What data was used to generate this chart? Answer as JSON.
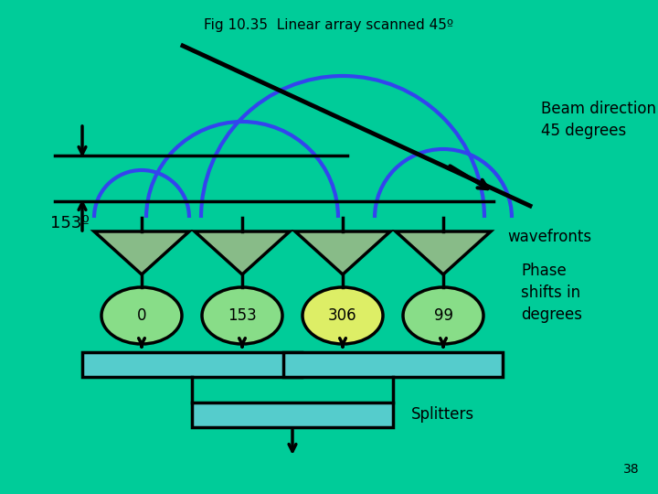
{
  "bg_color": "#00CC99",
  "title": "Fig 10.35  Linear array scanned 45º",
  "title_fontsize": 11,
  "title_color": "black",
  "beam_direction_text": "Beam direction\n45 degrees",
  "wavefronts_text": "wavefronts",
  "phase_shifts_text": "Phase\nshifts in\ndegrees",
  "splitters_text": "Splitters",
  "label_153": "153º",
  "page_number": "38",
  "phase_values": [
    "0",
    "153",
    "306",
    "99"
  ],
  "teal_light": "#55CCCC",
  "green_ant": "#88BB88",
  "ellipse_colors": [
    "#88DD88",
    "#88DD88",
    "#DDEE66",
    "#88DD88"
  ],
  "blue_arc": "#3344EE",
  "lw_main": 2.5
}
